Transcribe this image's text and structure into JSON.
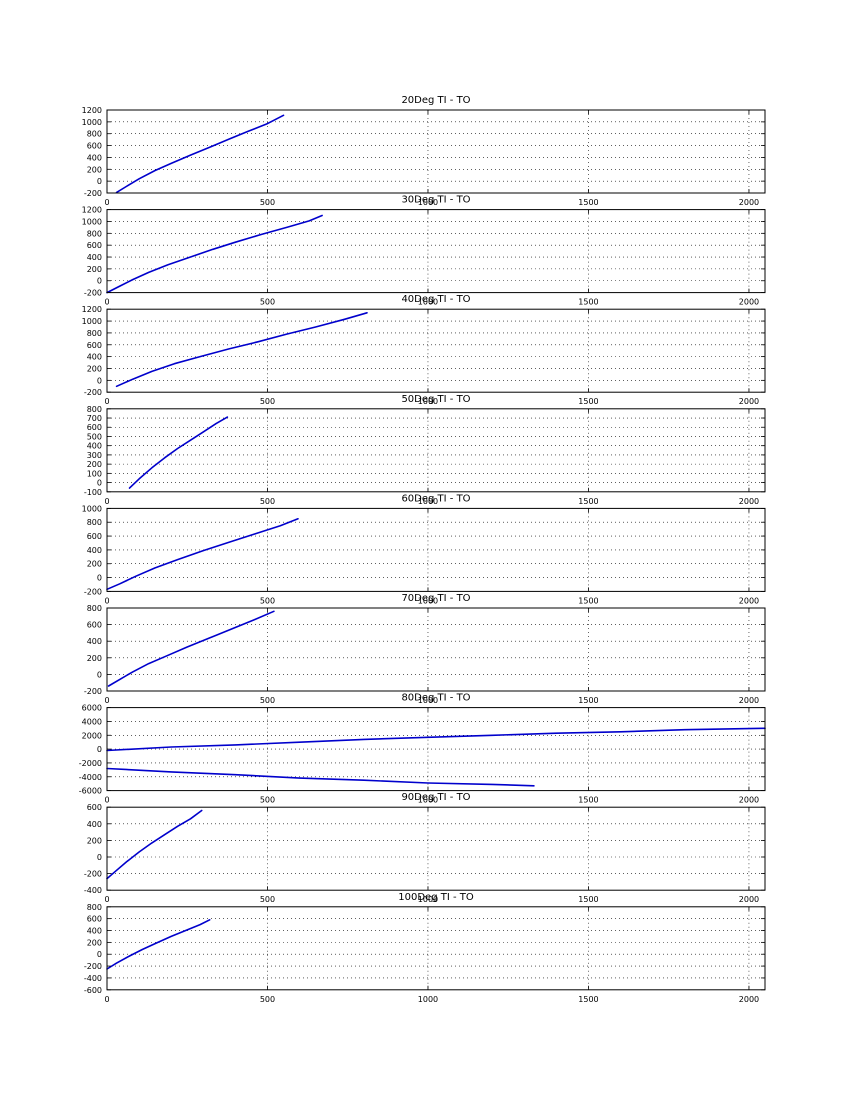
{
  "colors": {
    "series": "#0000cc",
    "background": "#ffffff",
    "axes": "#000000"
  },
  "chart_data": [
    {
      "type": "line",
      "title": "20Deg TI - TO",
      "xlim": [
        0,
        2050
      ],
      "ylim": [
        -200,
        1200
      ],
      "xticks": [
        0,
        500,
        1000,
        1500,
        2000
      ],
      "yticks": [
        -200,
        0,
        200,
        400,
        600,
        800,
        1000,
        1200
      ],
      "grid": true,
      "series": [
        {
          "x": [
            30,
            60,
            100,
            150,
            200,
            260,
            320,
            380,
            440,
            500,
            550
          ],
          "y": [
            -190,
            -90,
            40,
            180,
            300,
            440,
            570,
            710,
            840,
            970,
            1110
          ]
        }
      ]
    },
    {
      "type": "line",
      "title": "30Deg TI - TO",
      "xlim": [
        0,
        2050
      ],
      "ylim": [
        -200,
        1200
      ],
      "xticks": [
        0,
        500,
        1000,
        1500,
        2000
      ],
      "yticks": [
        -200,
        0,
        200,
        400,
        600,
        800,
        1000,
        1200
      ],
      "grid": true,
      "series": [
        {
          "x": [
            0,
            40,
            80,
            130,
            190,
            260,
            330,
            400,
            480,
            560,
            630,
            670
          ],
          "y": [
            -200,
            -90,
            20,
            140,
            270,
            400,
            530,
            650,
            780,
            900,
            1010,
            1100
          ]
        }
      ]
    },
    {
      "type": "line",
      "title": "40Deg TI - TO",
      "xlim": [
        0,
        2050
      ],
      "ylim": [
        -200,
        1200
      ],
      "xticks": [
        0,
        500,
        1000,
        1500,
        2000
      ],
      "yticks": [
        -200,
        0,
        200,
        400,
        600,
        800,
        1000,
        1200
      ],
      "grid": true,
      "series": [
        {
          "x": [
            30,
            80,
            140,
            210,
            290,
            380,
            470,
            560,
            650,
            740,
            810
          ],
          "y": [
            -100,
            20,
            150,
            280,
            400,
            530,
            650,
            780,
            900,
            1030,
            1140
          ]
        }
      ]
    },
    {
      "type": "line",
      "title": "50Deg TI - TO",
      "xlim": [
        0,
        2050
      ],
      "ylim": [
        -100,
        800
      ],
      "xticks": [
        0,
        500,
        1000,
        1500,
        2000
      ],
      "yticks": [
        -100,
        0,
        100,
        200,
        300,
        400,
        500,
        600,
        700,
        800
      ],
      "grid": true,
      "series": [
        {
          "x": [
            70,
            100,
            140,
            180,
            220,
            260,
            300,
            340,
            375
          ],
          "y": [
            -60,
            40,
            160,
            270,
            370,
            460,
            550,
            640,
            710
          ]
        }
      ]
    },
    {
      "type": "line",
      "title": "60Deg TI - TO",
      "xlim": [
        0,
        2050
      ],
      "ylim": [
        -200,
        1000
      ],
      "xticks": [
        0,
        500,
        1000,
        1500,
        2000
      ],
      "yticks": [
        -200,
        0,
        200,
        400,
        600,
        800,
        1000
      ],
      "grid": true,
      "series": [
        {
          "x": [
            0,
            40,
            90,
            150,
            220,
            300,
            380,
            460,
            540,
            595
          ],
          "y": [
            -170,
            -90,
            20,
            140,
            260,
            390,
            510,
            630,
            750,
            850
          ]
        }
      ]
    },
    {
      "type": "line",
      "title": "70Deg TI - TO",
      "xlim": [
        0,
        2050
      ],
      "ylim": [
        -200,
        800
      ],
      "xticks": [
        0,
        500,
        1000,
        1500,
        2000
      ],
      "yticks": [
        -200,
        0,
        200,
        400,
        600,
        800
      ],
      "grid": true,
      "series": [
        {
          "x": [
            5,
            40,
            80,
            130,
            190,
            250,
            320,
            390,
            460,
            520
          ],
          "y": [
            -140,
            -60,
            30,
            130,
            230,
            330,
            440,
            550,
            660,
            760
          ]
        }
      ]
    },
    {
      "type": "line",
      "title": "80Deg TI - TO",
      "xlim": [
        0,
        2050
      ],
      "ylim": [
        -6000,
        6000
      ],
      "xticks": [
        0,
        500,
        1000,
        1500,
        2000
      ],
      "yticks": [
        -6000,
        -4000,
        -2000,
        0,
        2000,
        4000,
        6000
      ],
      "grid": true,
      "series": [
        {
          "x": [
            0,
            200,
            400,
            600,
            800,
            1000,
            1200,
            1400,
            1600,
            1800,
            2050
          ],
          "y": [
            -200,
            300,
            600,
            1000,
            1400,
            1700,
            2000,
            2300,
            2500,
            2800,
            3000
          ]
        },
        {
          "x": [
            0,
            200,
            400,
            600,
            800,
            1000,
            1200,
            1330
          ],
          "y": [
            -2800,
            -3300,
            -3700,
            -4200,
            -4500,
            -4900,
            -5100,
            -5300
          ]
        }
      ]
    },
    {
      "type": "line",
      "title": "90Deg TI - TO",
      "xlim": [
        0,
        2050
      ],
      "ylim": [
        -400,
        600
      ],
      "xticks": [
        0,
        500,
        1000,
        1500,
        2000
      ],
      "yticks": [
        -400,
        -200,
        0,
        200,
        400,
        600
      ],
      "grid": true,
      "series": [
        {
          "x": [
            0,
            30,
            60,
            100,
            140,
            180,
            220,
            260,
            295
          ],
          "y": [
            -260,
            -160,
            -60,
            60,
            170,
            270,
            370,
            460,
            560
          ]
        }
      ]
    },
    {
      "type": "line",
      "title": "100Deg TI - TO",
      "xlim": [
        0,
        2050
      ],
      "ylim": [
        -600,
        800
      ],
      "xticks": [
        0,
        500,
        1000,
        1500,
        2000
      ],
      "yticks": [
        -600,
        -400,
        -200,
        0,
        200,
        400,
        600,
        800
      ],
      "grid": true,
      "series": [
        {
          "x": [
            0,
            30,
            70,
            110,
            150,
            200,
            250,
            290,
            320
          ],
          "y": [
            -250,
            -150,
            -30,
            80,
            180,
            300,
            410,
            500,
            580
          ]
        }
      ]
    }
  ]
}
